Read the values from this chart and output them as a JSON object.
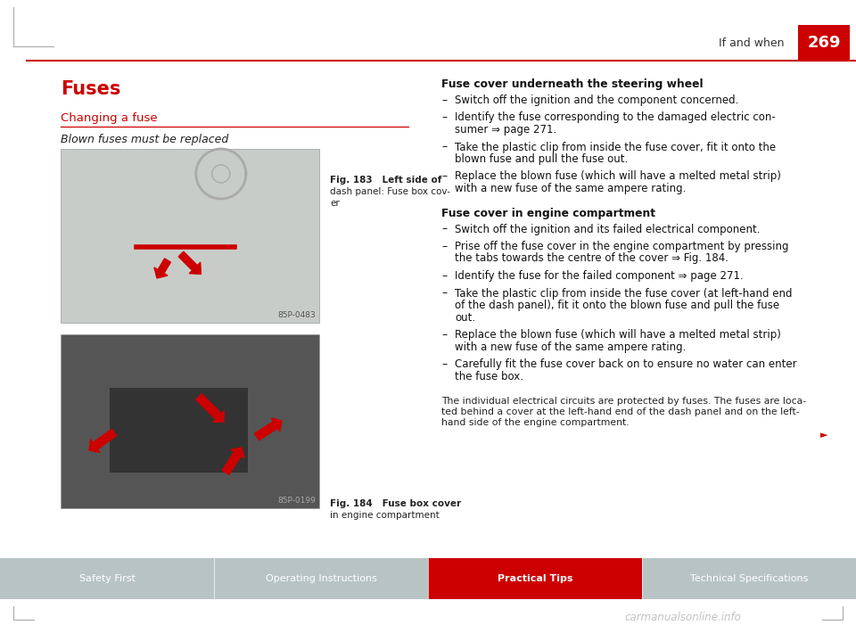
{
  "page_bg": "#ffffff",
  "header_line_color": "#cc0000",
  "header_text": "If and when",
  "header_page_num": "269",
  "header_page_bg": "#cc0000",
  "header_page_text_color": "#ffffff",
  "title": "Fuses",
  "title_color": "#cc0000",
  "subtitle": "Changing a fuse",
  "subtitle_color": "#cc0000",
  "subtitle_line_color": "#cc0000",
  "italic_text": "Blown fuses must be replaced",
  "fig1_caption_line1": "Fig. 183   Left side of",
  "fig1_caption_line2": "dash panel: Fuse box cov-",
  "fig1_caption_line3": "er",
  "fig1_code": "85P-0483",
  "fig2_caption_line1": "Fig. 184   Fuse box cover",
  "fig2_caption_line2": "in engine compartment",
  "fig2_code": "85P-0199",
  "right_heading1": "Fuse cover underneath the steering wheel",
  "right_bullets1": [
    "Switch off the ignition and the component concerned.",
    "Identify the fuse corresponding to the damaged electric con-\nsumer ⇒ page 271.",
    "Take the plastic clip from inside the fuse cover, fit it onto the\nblown fuse and pull the fuse out.",
    "Replace the blown fuse (which will have a melted metal strip)\nwith a new fuse of the same ampere rating."
  ],
  "right_heading2": "Fuse cover in engine compartment",
  "right_bullets2": [
    "Switch off the ignition and its failed electrical component.",
    "Prise off the fuse cover in the engine compartment by pressing\nthe tabs towards the centre of the cover ⇒ Fig. 184.",
    "Identify the fuse for the failed component ⇒ page 271.",
    "Take the plastic clip from inside the fuse cover (at left-hand end\nof the dash panel), fit it onto the blown fuse and pull the fuse\nout.",
    "Replace the blown fuse (which will have a melted metal strip)\nwith a new fuse of the same ampere rating.",
    "Carefully fit the fuse cover back on to ensure no water can enter\nthe fuse box."
  ],
  "right_note": "The individual electrical circuits are protected by fuses. The fuses are loca-\nted behind a cover at the left-hand end of the dash panel and on the left-\nhand side of the engine compartment.",
  "footer_tabs": [
    "Safety First",
    "Operating Instructions",
    "Practical Tips",
    "Technical Specifications"
  ],
  "footer_active_tab": 2,
  "footer_bg": "#b8c4c4",
  "footer_active_bg": "#cc0000",
  "footer_text_color": "#ffffff",
  "corner_marks_color": "#aaaaaa",
  "watermark": "carmanualsonline.info",
  "img1_bg": "#c8ccc8",
  "img2_bg": "#555555"
}
